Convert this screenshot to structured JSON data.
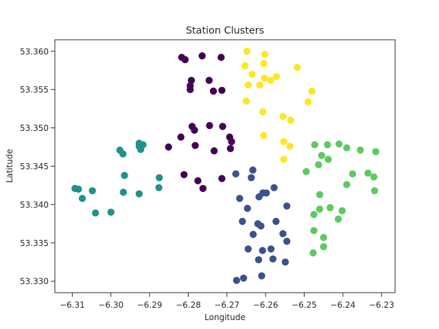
{
  "chart_data": {
    "type": "scatter",
    "title": "Station Clusters",
    "xlabel": "Longitude",
    "ylabel": "Latitude",
    "xlim": [
      -6.3145,
      -6.2265
    ],
    "ylim": [
      53.3285,
      53.3615
    ],
    "grid": false,
    "legend": "none",
    "x_ticks": [
      -6.31,
      -6.3,
      -6.29,
      -6.28,
      -6.27,
      -6.26,
      -6.25,
      -6.24,
      -6.23
    ],
    "x_tick_labels": [
      "−6.31",
      "−6.30",
      "−6.29",
      "−6.28",
      "−6.27",
      "−6.26",
      "−6.25",
      "−6.24",
      "−6.23"
    ],
    "y_ticks": [
      53.33,
      53.335,
      53.34,
      53.345,
      53.35,
      53.355,
      53.36
    ],
    "y_tick_labels": [
      "53.330",
      "53.335",
      "53.340",
      "53.345",
      "53.350",
      "53.355",
      "53.360"
    ],
    "series": [
      {
        "color": "#440154",
        "points": [
          [
            -6.2817,
            53.3592
          ],
          [
            -6.2808,
            53.3589
          ],
          [
            -6.2764,
            53.3594
          ],
          [
            -6.2715,
            53.3592
          ],
          [
            -6.2795,
            53.355
          ],
          [
            -6.2795,
            53.3555
          ],
          [
            -6.2792,
            53.3562
          ],
          [
            -6.2746,
            53.3562
          ],
          [
            -6.2735,
            53.3548
          ],
          [
            -6.2713,
            53.3549
          ],
          [
            -6.2711,
            53.3502
          ],
          [
            -6.2745,
            53.3503
          ],
          [
            -6.279,
            53.3502
          ],
          [
            -6.2784,
            53.3497
          ],
          [
            -6.2819,
            53.3488
          ],
          [
            -6.2782,
            53.3477
          ],
          [
            -6.2851,
            53.3475
          ],
          [
            -6.2733,
            53.347
          ],
          [
            -6.2693,
            53.3488
          ],
          [
            -6.2688,
            53.3482
          ],
          [
            -6.2811,
            53.3439
          ],
          [
            -6.2775,
            53.3431
          ],
          [
            -6.2762,
            53.3421
          ],
          [
            -6.2713,
            53.3434
          ],
          [
            -6.2691,
            53.3473
          ]
        ]
      },
      {
        "color": "#3b528b",
        "points": [
          [
            -6.2633,
            53.3445
          ],
          [
            -6.2677,
            53.344
          ],
          [
            -6.2637,
            53.3435
          ],
          [
            -6.2607,
            53.3415
          ],
          [
            -6.2598,
            53.3415
          ],
          [
            -6.2578,
            53.3422
          ],
          [
            -6.2667,
            53.3408
          ],
          [
            -6.2617,
            53.341
          ],
          [
            -6.2545,
            53.3398
          ],
          [
            -6.2647,
            53.3395
          ],
          [
            -6.266,
            53.3378
          ],
          [
            -6.262,
            53.3375
          ],
          [
            -6.2612,
            53.3372
          ],
          [
            -6.2573,
            53.3378
          ],
          [
            -6.2632,
            53.3361
          ],
          [
            -6.2555,
            53.3362
          ],
          [
            -6.2545,
            53.3352
          ],
          [
            -6.2586,
            53.3342
          ],
          [
            -6.2608,
            53.334
          ],
          [
            -6.2645,
            53.3342
          ],
          [
            -6.2618,
            53.3328
          ],
          [
            -6.2581,
            53.3329
          ],
          [
            -6.2549,
            53.3325
          ],
          [
            -6.261,
            53.3307
          ],
          [
            -6.2657,
            53.3304
          ],
          [
            -6.2675,
            53.3301
          ]
        ]
      },
      {
        "color": "#21918c",
        "points": [
          [
            -6.2977,
            53.3471
          ],
          [
            -6.2969,
            53.3466
          ],
          [
            -6.2927,
            53.348
          ],
          [
            -6.2927,
            53.3476
          ],
          [
            -6.2923,
            53.3472
          ],
          [
            -6.2917,
            53.3478
          ],
          [
            -6.2965,
            53.3438
          ],
          [
            -6.2875,
            53.3435
          ],
          [
            -6.3093,
            53.3421
          ],
          [
            -6.3084,
            53.342
          ],
          [
            -6.3048,
            53.3418
          ],
          [
            -6.2968,
            53.3416
          ],
          [
            -6.2927,
            53.3414
          ],
          [
            -6.2876,
            53.3422
          ],
          [
            -6.3074,
            53.3408
          ],
          [
            -6.304,
            53.3389
          ],
          [
            -6.3,
            53.339
          ]
        ]
      },
      {
        "color": "#5ec962",
        "points": [
          [
            -6.2473,
            53.3478
          ],
          [
            -6.244,
            53.3478
          ],
          [
            -6.241,
            53.3479
          ],
          [
            -6.239,
            53.3474
          ],
          [
            -6.2355,
            53.3471
          ],
          [
            -6.2315,
            53.3469
          ],
          [
            -6.2455,
            53.3464
          ],
          [
            -6.2438,
            53.3459
          ],
          [
            -6.2463,
            53.3452
          ],
          [
            -6.2495,
            53.3443
          ],
          [
            -6.2375,
            53.344
          ],
          [
            -6.2335,
            53.3441
          ],
          [
            -6.232,
            53.3436
          ],
          [
            -6.239,
            53.3426
          ],
          [
            -6.246,
            53.3413
          ],
          [
            -6.2318,
            53.3418
          ],
          [
            -6.246,
            53.3394
          ],
          [
            -6.2433,
            53.3396
          ],
          [
            -6.2402,
            53.3392
          ],
          [
            -6.2475,
            53.3387
          ],
          [
            -6.2412,
            53.3381
          ],
          [
            -6.2475,
            53.3366
          ],
          [
            -6.245,
            53.3357
          ],
          [
            -6.245,
            53.3345
          ],
          [
            -6.2477,
            53.3337
          ]
        ]
      },
      {
        "color": "#fde725",
        "points": [
          [
            -6.2648,
            53.36
          ],
          [
            -6.2602,
            53.3596
          ],
          [
            -6.2605,
            53.3584
          ],
          [
            -6.2653,
            53.3581
          ],
          [
            -6.2518,
            53.3579
          ],
          [
            -6.2635,
            53.357
          ],
          [
            -6.2603,
            53.3565
          ],
          [
            -6.2572,
            53.3567
          ],
          [
            -6.2587,
            53.3562
          ],
          [
            -6.2645,
            53.3556
          ],
          [
            -6.2615,
            53.3556
          ],
          [
            -6.248,
            53.3548
          ],
          [
            -6.249,
            53.3534
          ],
          [
            -6.265,
            53.3535
          ],
          [
            -6.2607,
            53.3521
          ],
          [
            -6.2555,
            53.3515
          ],
          [
            -6.2535,
            53.351
          ],
          [
            -6.2605,
            53.349
          ],
          [
            -6.2553,
            53.3482
          ],
          [
            -6.2537,
            53.3476
          ],
          [
            -6.2553,
            53.3459
          ]
        ]
      }
    ]
  }
}
